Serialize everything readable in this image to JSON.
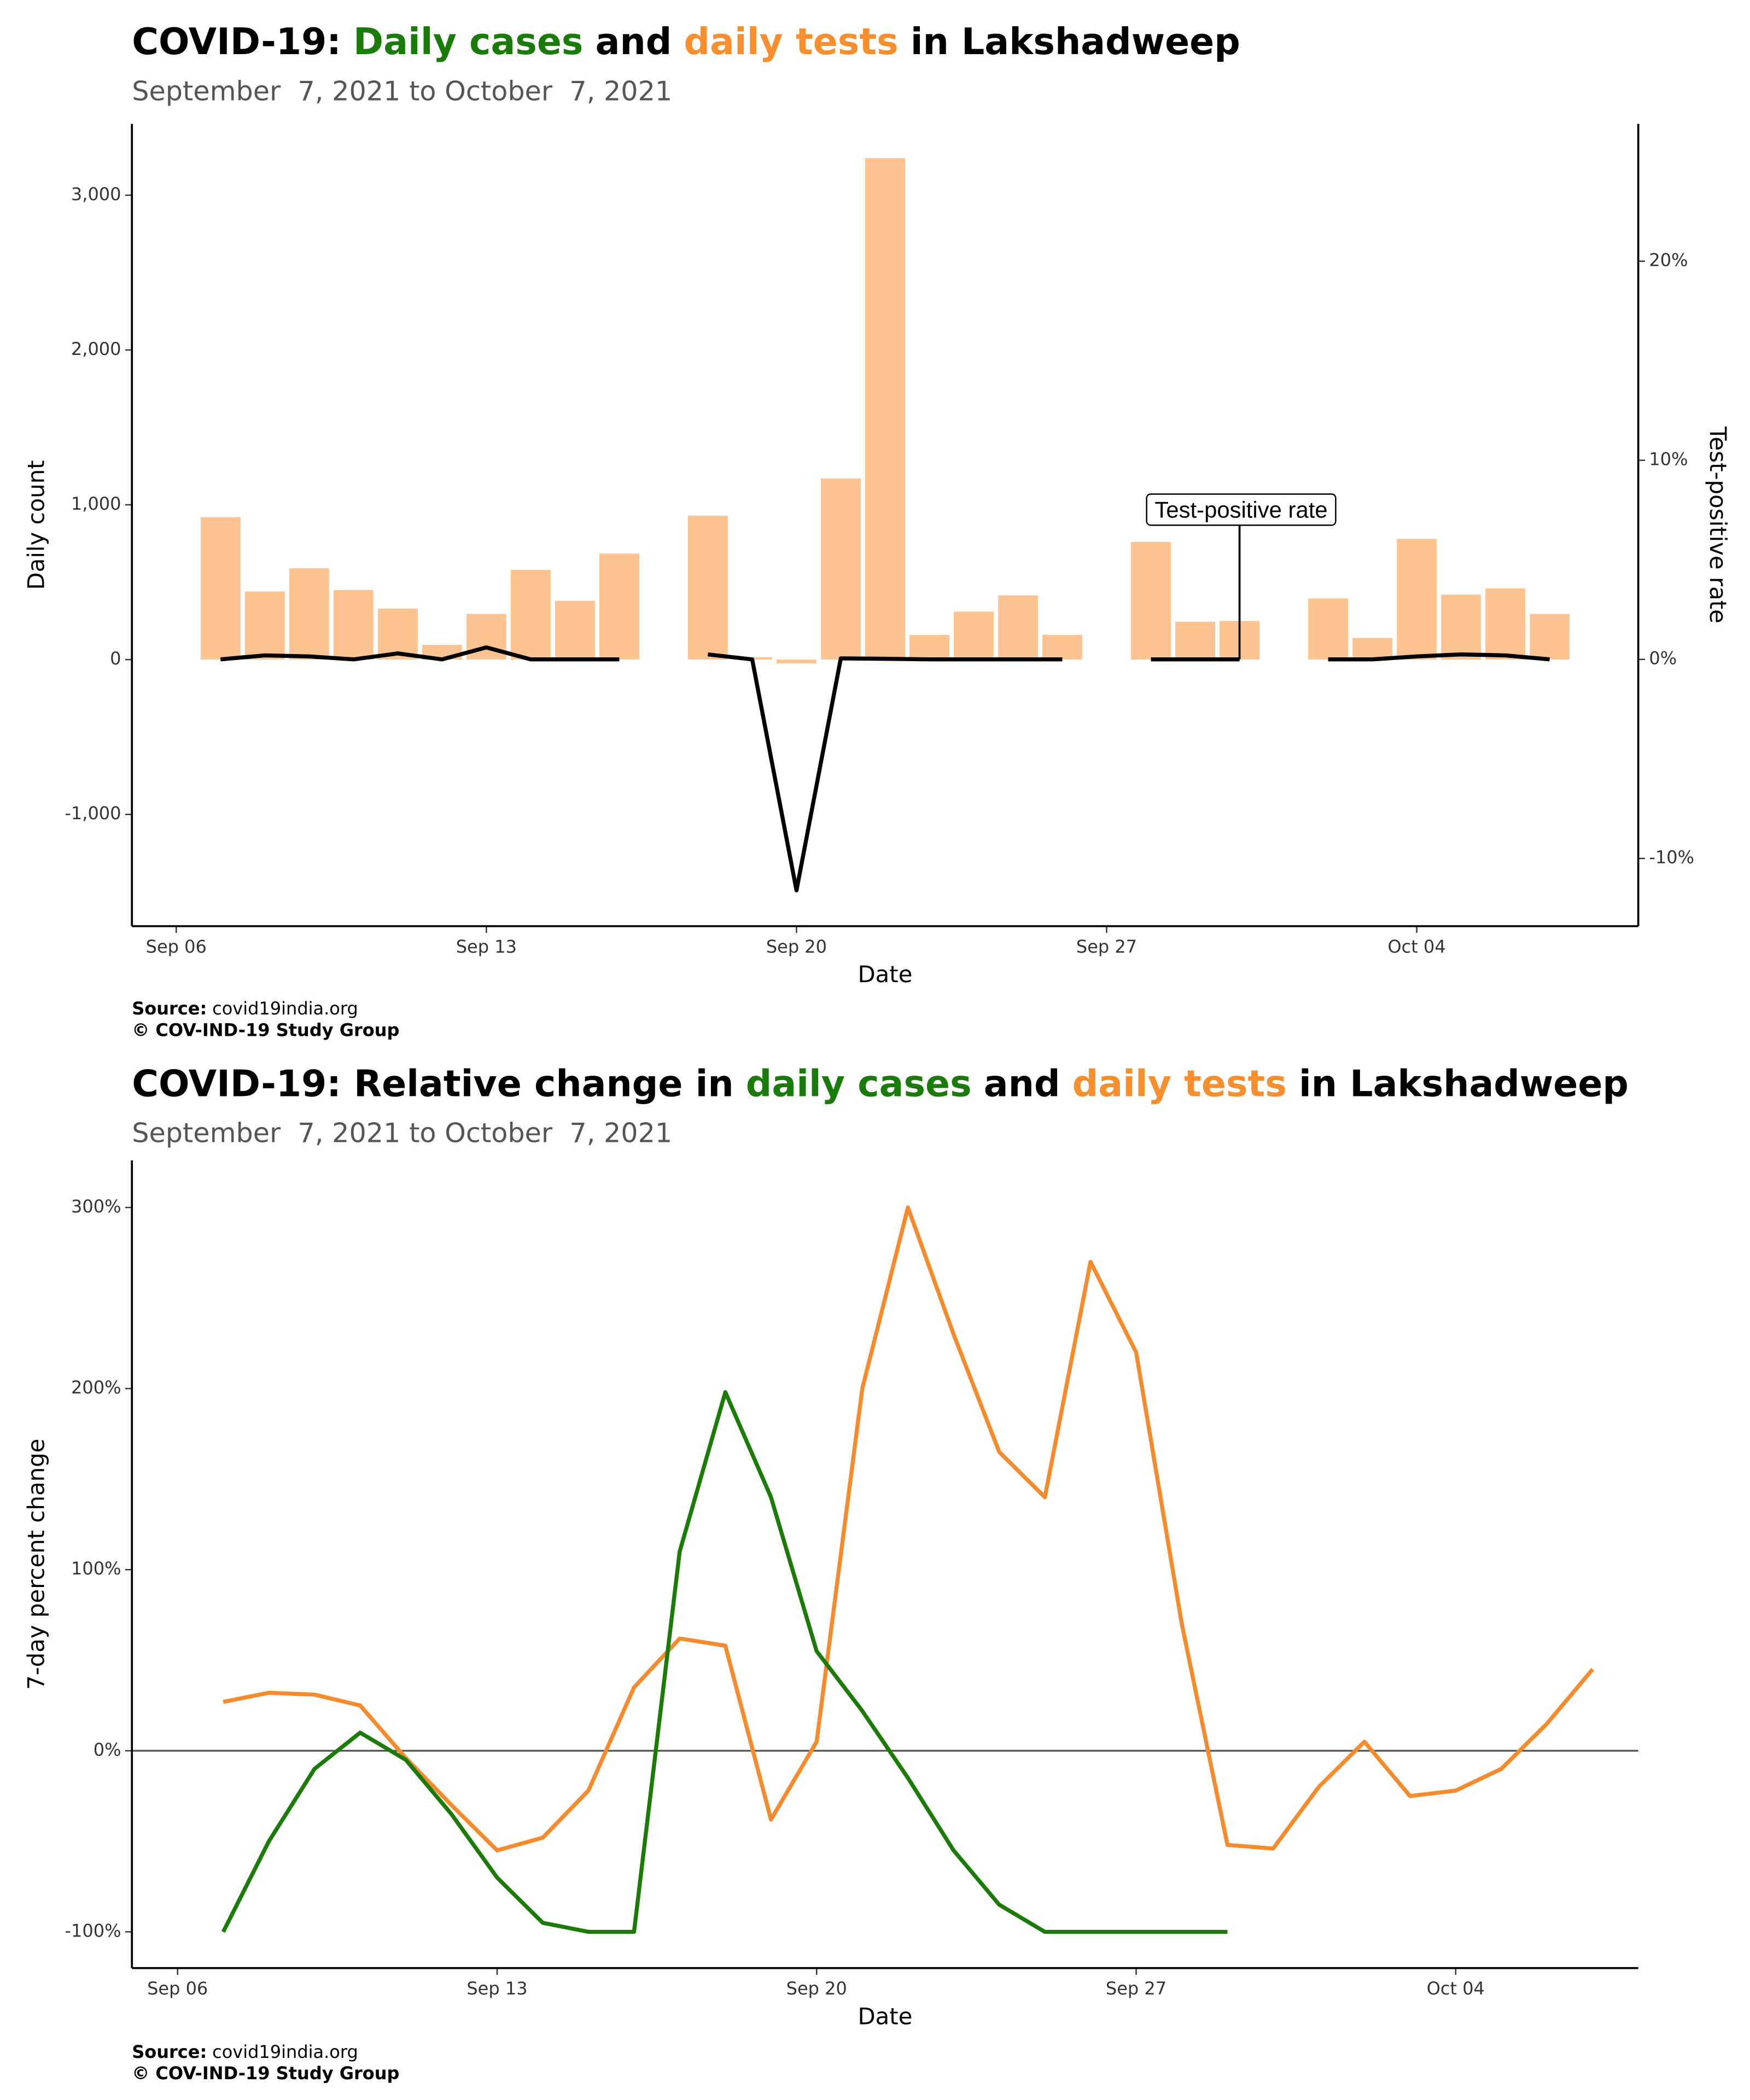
{
  "chart_data": [
    {
      "type": "bar",
      "title": [
        {
          "text": "COVID-19:",
          "color": "#000000"
        },
        {
          "text": "Daily cases",
          "color": "#1a7a0a"
        },
        {
          "text": "and",
          "color": "#000000"
        },
        {
          "text": "daily tests",
          "color": "#f78f2e"
        },
        {
          "text": "in Lakshadweep",
          "color": "#000000"
        }
      ],
      "subtitle": "September  7, 2021 to October  7, 2021",
      "x_label": "Date",
      "y_label": "Daily count",
      "y2_label": "Test-positive rate",
      "annotation": "Test-positive rate",
      "x": [
        "Sep 07",
        "Sep 08",
        "Sep 09",
        "Sep 10",
        "Sep 11",
        "Sep 12",
        "Sep 13",
        "Sep 14",
        "Sep 15",
        "Sep 16",
        "Sep 17",
        "Sep 18",
        "Sep 19",
        "Sep 20",
        "Sep 21",
        "Sep 22",
        "Sep 23",
        "Sep 24",
        "Sep 25",
        "Sep 26",
        "Sep 27",
        "Sep 28",
        "Sep 29",
        "Sep 30",
        "Oct 01",
        "Oct 02",
        "Oct 03",
        "Oct 04",
        "Oct 05",
        "Oct 06",
        "Oct 07"
      ],
      "series": [
        {
          "type": "bar",
          "color": "#fdc391",
          "values": [
            920,
            440,
            590,
            450,
            330,
            95,
            295,
            580,
            380,
            685,
            null,
            930,
            15,
            -25,
            1170,
            3240,
            160,
            310,
            415,
            160,
            null,
            760,
            245,
            250,
            null,
            395,
            140,
            780,
            420,
            460,
            295
          ]
        },
        {
          "type": "line",
          "axis": "y2",
          "color": "#000000",
          "values": [
            0,
            0.2,
            0.15,
            0,
            0.3,
            0,
            0.6,
            0,
            0,
            0,
            null,
            0.25,
            0,
            -11.6,
            0.05,
            0.03,
            0,
            0,
            0,
            0,
            null,
            0,
            0,
            0,
            null,
            0,
            0,
            0.15,
            0.25,
            0.2,
            0
          ]
        }
      ],
      "xlim": [
        "Sep 05",
        "Oct 09"
      ],
      "xticks": [
        "Sep 06",
        "Sep 13",
        "Sep 20",
        "Sep 27",
        "Oct 04"
      ],
      "ylim": [
        -1722,
        3461
      ],
      "yticks": [
        {
          "value": -1000,
          "label": "-1,000"
        },
        0,
        {
          "value": 1000,
          "label": "1,000"
        },
        {
          "value": 2000,
          "label": "2,000"
        },
        {
          "value": 3000,
          "label": "3,000"
        }
      ],
      "y2lim": [
        -13.4,
        26.9
      ],
      "y2ticks": [
        {
          "value": -10,
          "label": "-10%"
        },
        {
          "value": 0,
          "label": "0%"
        },
        {
          "value": 10,
          "label": "10%"
        },
        {
          "value": 20,
          "label": "20%"
        }
      ],
      "source_label": "Source:",
      "source": "covid19india.org",
      "copyright": "© COV-IND-19 Study Group"
    },
    {
      "type": "line",
      "title": [
        {
          "text": "COVID-19: Relative change in",
          "color": "#000000"
        },
        {
          "text": "daily cases",
          "color": "#1a7a0a"
        },
        {
          "text": "and",
          "color": "#000000"
        },
        {
          "text": "daily tests",
          "color": "#f78f2e"
        },
        {
          "text": "in Lakshadweep",
          "color": "#000000"
        }
      ],
      "subtitle": "September  7, 2021 to October  7, 2021",
      "x_label": "Date",
      "y_label": "7-day percent change",
      "zero_line": true,
      "x": [
        "Sep 07",
        "Sep 08",
        "Sep 09",
        "Sep 10",
        "Sep 11",
        "Sep 12",
        "Sep 13",
        "Sep 14",
        "Sep 15",
        "Sep 16",
        "Sep 17",
        "Sep 18",
        "Sep 19",
        "Sep 20",
        "Sep 21",
        "Sep 22",
        "Sep 23",
        "Sep 24",
        "Sep 25",
        "Sep 26",
        "Sep 27",
        "Sep 28",
        "Sep 29",
        "Sep 30",
        "Oct 01",
        "Oct 02",
        "Oct 03",
        "Oct 04",
        "Oct 05",
        "Oct 06",
        "Oct 07"
      ],
      "series": [
        {
          "color": "#f68b2d",
          "values": [
            27,
            32,
            31,
            25,
            -4,
            -30,
            -55,
            -48,
            -22,
            35,
            62,
            58,
            -38,
            5,
            200,
            300,
            230,
            165,
            140,
            270,
            220,
            70,
            -52,
            -54,
            -20,
            5,
            -25,
            -22,
            -10,
            15,
            45
          ]
        },
        {
          "color": "#1b7a08",
          "values": [
            -100,
            -50,
            -10,
            10,
            -5,
            -35,
            -70,
            -95,
            -100,
            -100,
            110,
            198,
            140,
            55,
            22,
            -15,
            -55,
            -85,
            -100,
            -100,
            -100,
            -100,
            -100,
            null,
            null,
            null,
            null,
            null,
            null,
            null,
            null
          ]
        }
      ],
      "xlim": [
        "Sep 05",
        "Oct 08"
      ],
      "xticks": [
        "Sep 06",
        "Sep 13",
        "Sep 20",
        "Sep 27",
        "Oct 04"
      ],
      "ylim": [
        -120,
        326
      ],
      "yticks": [
        {
          "value": -100,
          "label": "-100%"
        },
        {
          "value": 0,
          "label": "0%"
        },
        {
          "value": 100,
          "label": "100%"
        },
        {
          "value": 200,
          "label": "200%"
        },
        {
          "value": 300,
          "label": "300%"
        }
      ],
      "source_label": "Source:",
      "source": "covid19india.org",
      "copyright": "© COV-IND-19 Study Group"
    }
  ]
}
